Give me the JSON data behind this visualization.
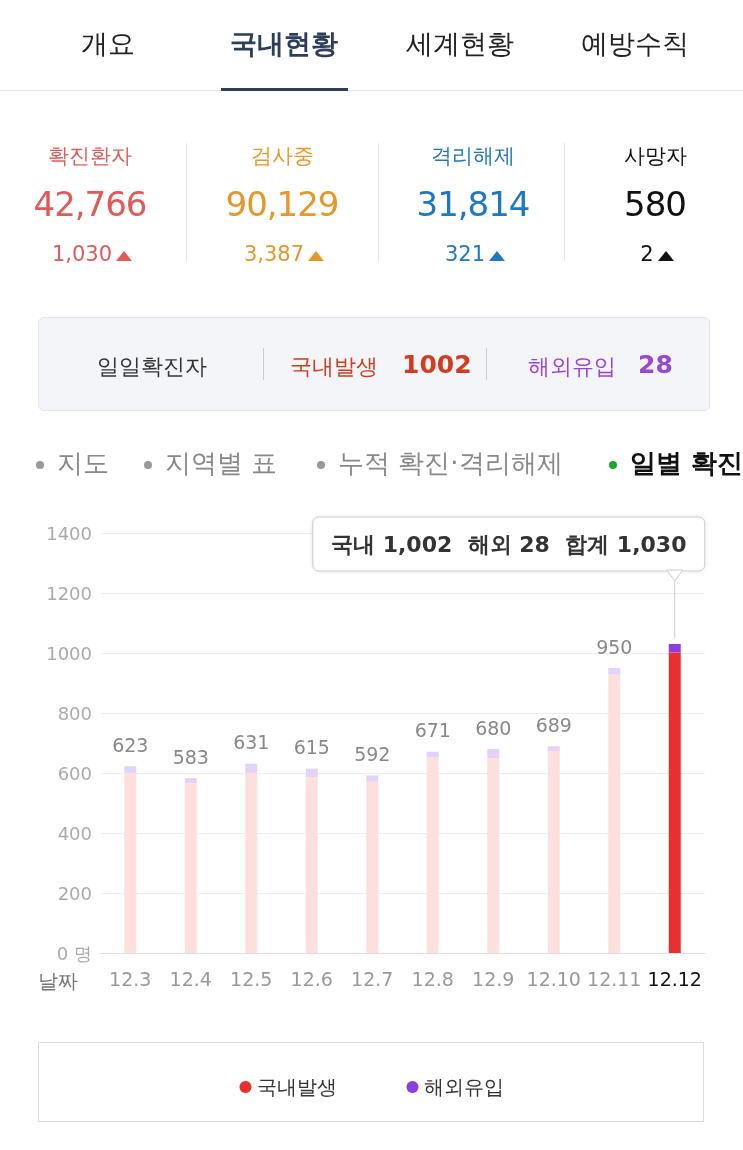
{
  "chart_data": [
    {
      "type": "other",
      "annotations": [
        "개요",
        "국내현황",
        "세계현황",
        "예방수칙",
        "확진환자",
        "42,766",
        "1,030",
        "검사중",
        "90,129",
        "3,387",
        "격리해제",
        "31,814",
        "321",
        "사망자",
        "580",
        "2",
        "일일확진자",
        "국내발생",
        "1002",
        "해외유입",
        "28",
        "지도",
        "지역별 표",
        "누적 확진·격리해제",
        "일별 확진"
      ]
    },
    {
      "type": "bar",
      "stacked": true,
      "xlabel": "날짜",
      "categories": [
        "12.3",
        "12.4",
        "12.5",
        "12.6",
        "12.7",
        "12.8",
        "12.9",
        "12.10",
        "12.11",
        "12.12"
      ],
      "series": [
        {
          "name": "국내발생",
          "color": "#e8302e",
          "colors": [
            "#fde0de",
            "#fde0de",
            "#fde0de",
            "#fde0de",
            "#fde0de",
            "#fde0de",
            "#fde0de",
            "#fde0de",
            "#fde0de",
            "#e8302e"
          ],
          "values": [
            600,
            566,
            600,
            586,
            571,
            652,
            650,
            673,
            928,
            1002
          ]
        },
        {
          "name": "해외유입",
          "color": "#8a3fdc",
          "colors": [
            "#e3d3fa",
            "#e3d3fa",
            "#e3d3fa",
            "#e3d3fa",
            "#e3d3fa",
            "#e3d3fa",
            "#e3d3fa",
            "#e3d3fa",
            "#e3d3fa",
            "#8a3fdc"
          ],
          "values": [
            23,
            17,
            31,
            29,
            21,
            19,
            30,
            16,
            22,
            28
          ]
        }
      ],
      "totals": [
        "623",
        "583",
        "631",
        "615",
        "592",
        "671",
        "680",
        "689",
        "950",
        null
      ],
      "ylim": [
        0,
        1400
      ],
      "yticks": [
        {
          "value": 0,
          "label": "0 명"
        },
        200,
        400,
        600,
        800,
        1000,
        1200,
        1400
      ],
      "grid": "y",
      "legend": "bottom",
      "annotations": [
        "국내 1,002  해외 28  합계 1,030"
      ]
    }
  ]
}
